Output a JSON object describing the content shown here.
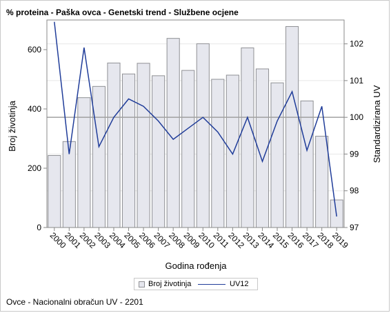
{
  "title": "% proteina - Paška ovca - Genetski trend - Službene ocjene",
  "footnote": "Ovce - Nacionalni obračun UV - 2201",
  "legend": {
    "bar_label": "Broj životinja",
    "line_label": "UV12"
  },
  "colors": {
    "bar_fill": "#e6e7ee",
    "bar_stroke": "#8f9094",
    "line": "#1f3c99",
    "reference_line": "#a0a0a0",
    "grid": "#e8e8e8",
    "axis": "#888888"
  },
  "chart_data": {
    "type": "bar",
    "title": "% proteina - Paška ovca - Genetski trend - Službene ocjene",
    "xlabel": "Godina rođenja",
    "ylabel": "Broj životinja",
    "y2label": "Standardizirana UV",
    "categories": [
      "2000",
      "2001",
      "2002",
      "2003",
      "2004",
      "2005",
      "2006",
      "2007",
      "2008",
      "2009",
      "2010",
      "2011",
      "2012",
      "2013",
      "2014",
      "2015",
      "2016",
      "2017",
      "2018",
      "2019"
    ],
    "series": [
      {
        "name": "Broj životinja",
        "type": "bar",
        "axis": "left",
        "values": [
          243,
          290,
          438,
          476,
          555,
          518,
          554,
          512,
          638,
          530,
          620,
          500,
          514,
          606,
          535,
          488,
          678,
          427,
          308,
          93
        ]
      },
      {
        "name": "UV12",
        "type": "line",
        "axis": "right",
        "values": [
          102.6,
          99.0,
          101.9,
          99.2,
          100.0,
          100.5,
          100.3,
          99.9,
          99.4,
          99.7,
          100.0,
          99.6,
          99.0,
          100.0,
          98.8,
          99.9,
          100.7,
          99.1,
          100.3,
          97.3
        ]
      }
    ],
    "ylim": [
      0,
      700
    ],
    "y_ticks": [
      0,
      200,
      400,
      600
    ],
    "y2lim": [
      97,
      102.65
    ],
    "y2_ticks": [
      97,
      98,
      99,
      100,
      101,
      102
    ],
    "reference_line": {
      "axis": "right",
      "value": 100
    },
    "grid": true,
    "legend_position": "bottom"
  }
}
